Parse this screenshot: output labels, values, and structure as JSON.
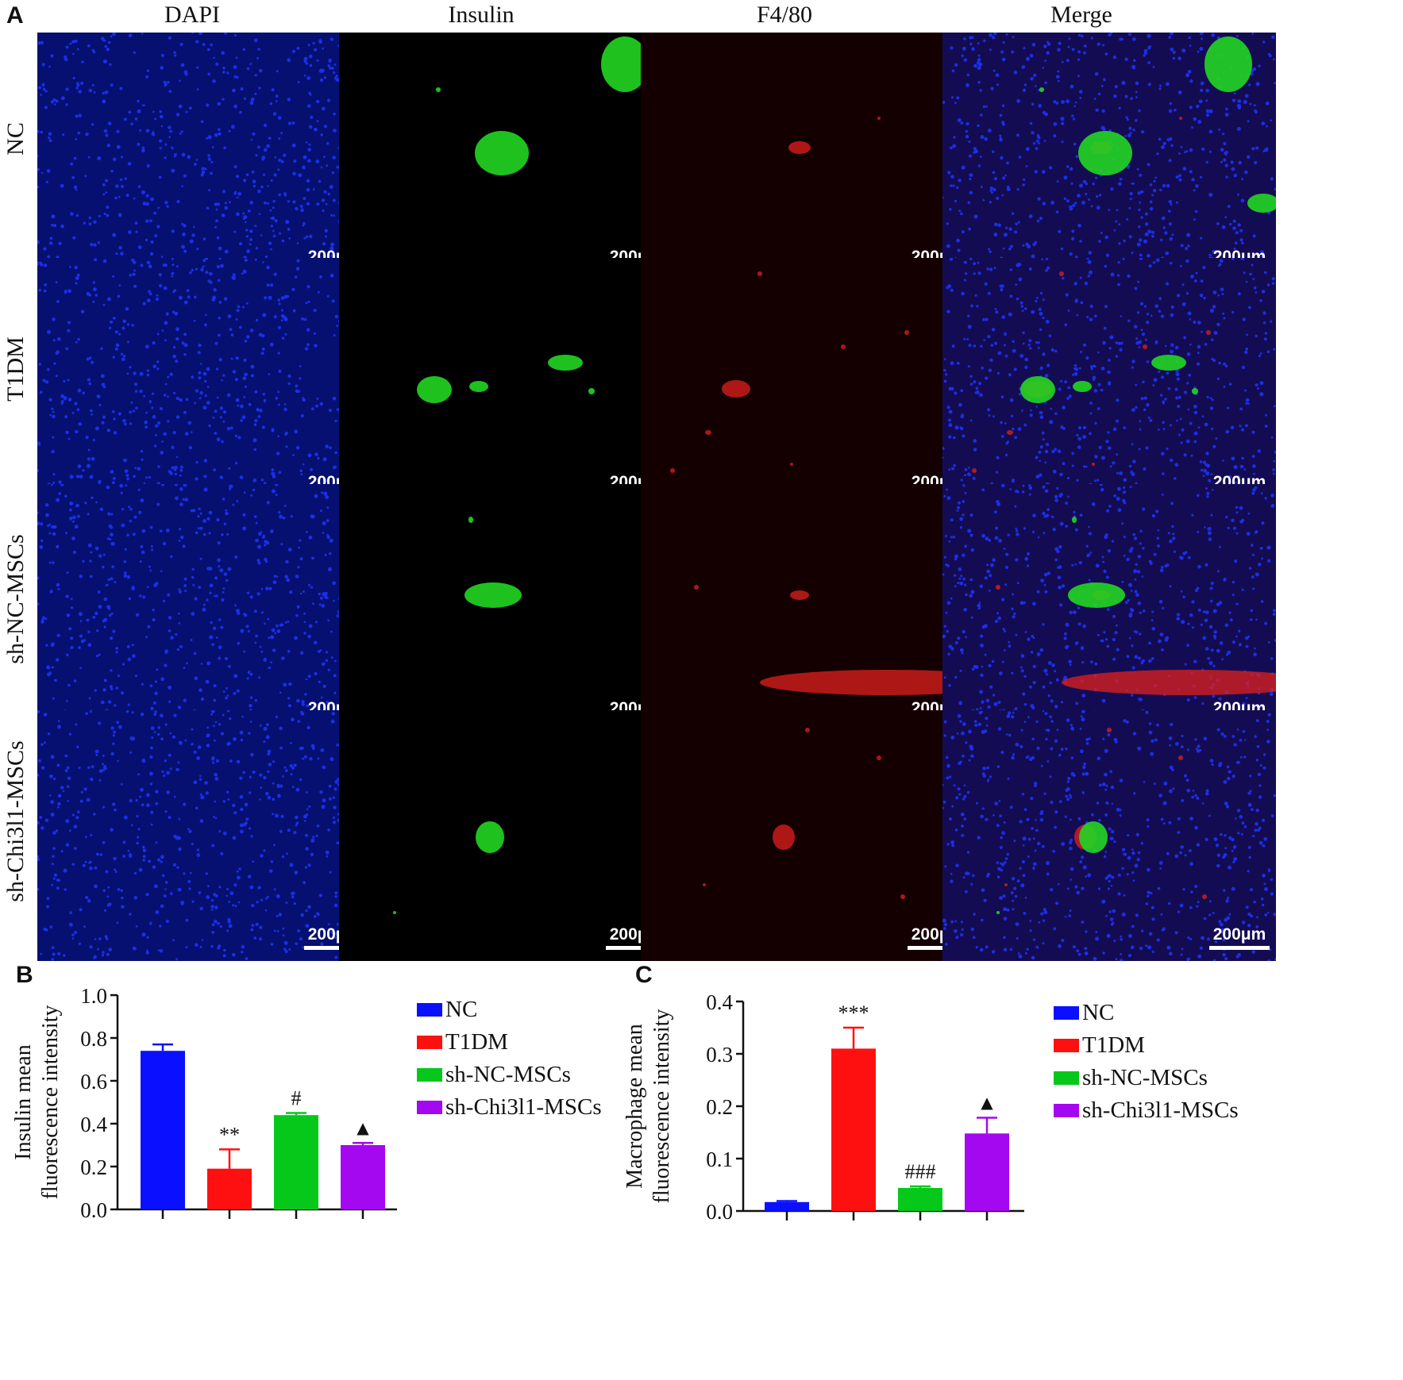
{
  "figure": {
    "panel_labels": [
      "A",
      "B",
      "C"
    ],
    "columns": [
      "DAPI",
      "Insulin",
      "F4/80",
      "Merge"
    ],
    "rows": [
      "NC",
      "T1DM",
      "sh-NC-MSCs",
      "sh-Chi3l1-MSCs"
    ],
    "scale_bar": "200μm",
    "channel_colors": {
      "DAPI": "#1c2ee8",
      "Insulin": "#22d622",
      "F4/80": "#e0201e",
      "background": "#000000"
    }
  },
  "chart_data": [
    {
      "type": "bar",
      "ylabel": [
        "Insulin mean",
        "fluorescence intensity"
      ],
      "ylim": [
        0,
        1.0
      ],
      "yticks": [
        "0.0",
        "0.2",
        "0.4",
        "0.6",
        "0.8",
        "1.0"
      ],
      "tick_values": [
        0,
        0.2,
        0.4,
        0.6,
        0.8,
        1.0
      ],
      "categories": [
        "NC",
        "T1DM",
        "sh-NC-MSCs",
        "sh-Chi3l1-MSCs"
      ],
      "values": [
        0.74,
        0.19,
        0.44,
        0.3
      ],
      "errors": [
        0.03,
        0.09,
        0.01,
        0.01
      ],
      "annotations": [
        "",
        "**",
        "#",
        "▲"
      ],
      "colors": [
        "#0a10ff",
        "#ff1010",
        "#06c81a",
        "#a408f0"
      ],
      "legend": "right"
    },
    {
      "type": "bar",
      "ylabel": [
        "Macrophage mean",
        "fluorescence intensity"
      ],
      "ylim": [
        0,
        0.4
      ],
      "yticks": [
        "0.0",
        "0.1",
        "0.2",
        "0.3",
        "0.4"
      ],
      "tick_values": [
        0,
        0.1,
        0.2,
        0.3,
        0.4
      ],
      "categories": [
        "NC",
        "T1DM",
        "sh-NC-MSCs",
        "sh-Chi3l1-MSCs"
      ],
      "values": [
        0.017,
        0.31,
        0.044,
        0.148
      ],
      "errors": [
        0.002,
        0.04,
        0.003,
        0.03
      ],
      "annotations": [
        "",
        "***",
        "###",
        "▲"
      ],
      "colors": [
        "#0a10ff",
        "#ff1010",
        "#06c81a",
        "#a408f0"
      ],
      "legend": "right"
    }
  ]
}
